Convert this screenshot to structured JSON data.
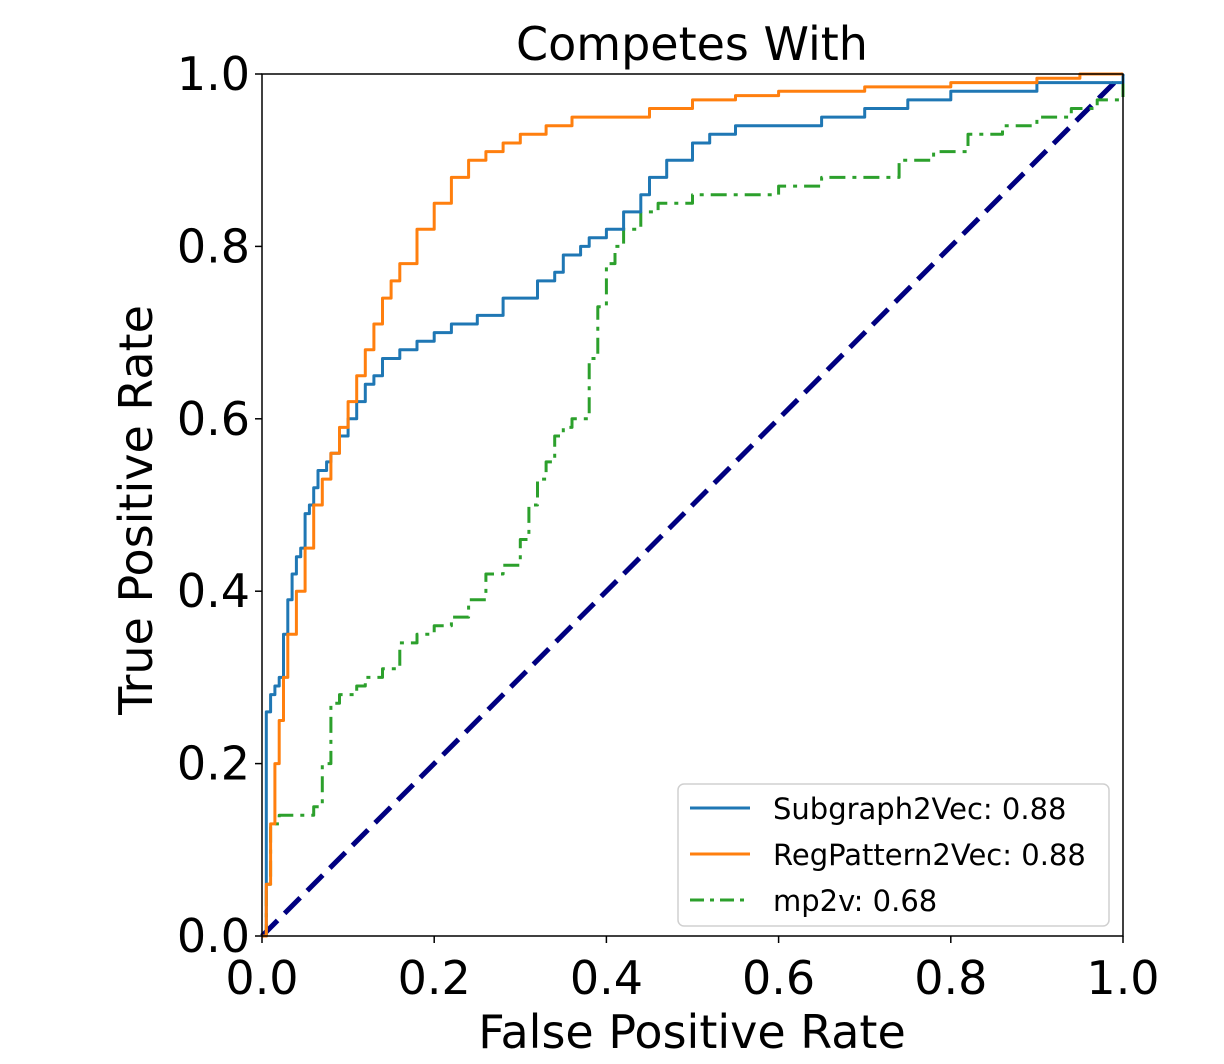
{
  "chart_data": {
    "type": "line",
    "title": "Competes With",
    "xlabel": "False Positive Rate",
    "ylabel": "True Positive Rate",
    "xlim": [
      0.0,
      1.0
    ],
    "ylim": [
      0.0,
      1.0
    ],
    "xticks": [
      "0.0",
      "0.2",
      "0.4",
      "0.6",
      "0.8",
      "1.0"
    ],
    "yticks": [
      "0.0",
      "0.2",
      "0.4",
      "0.6",
      "0.8",
      "1.0"
    ],
    "grid": false,
    "legend_position": "lower-right",
    "series": [
      {
        "name": "Subgraph2Vec: 0.88",
        "color": "#1f77b4",
        "style": "solid",
        "x": [
          0.0,
          0.005,
          0.005,
          0.01,
          0.01,
          0.015,
          0.02,
          0.025,
          0.03,
          0.03,
          0.035,
          0.04,
          0.04,
          0.045,
          0.05,
          0.055,
          0.06,
          0.065,
          0.07,
          0.075,
          0.08,
          0.09,
          0.1,
          0.11,
          0.12,
          0.13,
          0.14,
          0.16,
          0.18,
          0.2,
          0.22,
          0.25,
          0.28,
          0.3,
          0.32,
          0.34,
          0.35,
          0.37,
          0.38,
          0.4,
          0.42,
          0.44,
          0.45,
          0.47,
          0.5,
          0.52,
          0.55,
          0.6,
          0.65,
          0.7,
          0.75,
          0.8,
          0.85,
          0.9,
          0.95,
          1.0
        ],
        "y": [
          0.0,
          0.13,
          0.26,
          0.27,
          0.28,
          0.29,
          0.3,
          0.35,
          0.36,
          0.39,
          0.42,
          0.43,
          0.44,
          0.45,
          0.49,
          0.5,
          0.52,
          0.54,
          0.54,
          0.55,
          0.56,
          0.58,
          0.6,
          0.62,
          0.64,
          0.65,
          0.67,
          0.68,
          0.69,
          0.7,
          0.71,
          0.72,
          0.74,
          0.74,
          0.76,
          0.77,
          0.79,
          0.8,
          0.81,
          0.82,
          0.84,
          0.86,
          0.88,
          0.9,
          0.92,
          0.93,
          0.94,
          0.94,
          0.95,
          0.96,
          0.97,
          0.98,
          0.98,
          0.99,
          0.99,
          1.0
        ]
      },
      {
        "name": "RegPattern2Vec: 0.88",
        "color": "#ff7f0e",
        "style": "solid",
        "x": [
          0.0,
          0.005,
          0.01,
          0.015,
          0.02,
          0.025,
          0.03,
          0.04,
          0.05,
          0.06,
          0.07,
          0.08,
          0.09,
          0.1,
          0.11,
          0.12,
          0.13,
          0.14,
          0.15,
          0.16,
          0.18,
          0.2,
          0.22,
          0.24,
          0.26,
          0.28,
          0.3,
          0.33,
          0.36,
          0.4,
          0.45,
          0.5,
          0.55,
          0.6,
          0.7,
          0.8,
          0.9,
          0.95,
          1.0
        ],
        "y": [
          0.0,
          0.06,
          0.13,
          0.2,
          0.25,
          0.3,
          0.35,
          0.4,
          0.45,
          0.5,
          0.53,
          0.56,
          0.59,
          0.62,
          0.65,
          0.68,
          0.71,
          0.74,
          0.76,
          0.78,
          0.82,
          0.85,
          0.88,
          0.9,
          0.91,
          0.92,
          0.93,
          0.94,
          0.95,
          0.95,
          0.96,
          0.97,
          0.975,
          0.98,
          0.985,
          0.99,
          0.995,
          1.0,
          1.0
        ]
      },
      {
        "name": "mp2v: 0.68",
        "color": "#2ca02c",
        "style": "dashdot",
        "x": [
          0.0,
          0.005,
          0.01,
          0.02,
          0.04,
          0.06,
          0.07,
          0.08,
          0.09,
          0.11,
          0.12,
          0.14,
          0.16,
          0.18,
          0.2,
          0.22,
          0.24,
          0.26,
          0.28,
          0.3,
          0.31,
          0.32,
          0.33,
          0.34,
          0.35,
          0.36,
          0.38,
          0.39,
          0.4,
          0.41,
          0.42,
          0.44,
          0.46,
          0.48,
          0.5,
          0.55,
          0.6,
          0.65,
          0.7,
          0.74,
          0.78,
          0.82,
          0.86,
          0.9,
          0.94,
          0.97,
          1.0
        ],
        "y": [
          0.0,
          0.06,
          0.13,
          0.14,
          0.14,
          0.15,
          0.2,
          0.27,
          0.28,
          0.29,
          0.3,
          0.31,
          0.34,
          0.35,
          0.36,
          0.37,
          0.39,
          0.42,
          0.43,
          0.46,
          0.5,
          0.53,
          0.55,
          0.58,
          0.59,
          0.6,
          0.67,
          0.73,
          0.78,
          0.8,
          0.82,
          0.84,
          0.85,
          0.85,
          0.86,
          0.86,
          0.87,
          0.88,
          0.88,
          0.9,
          0.91,
          0.93,
          0.94,
          0.95,
          0.96,
          0.97,
          1.0
        ]
      }
    ],
    "reference_line": {
      "x": [
        0.0,
        1.0
      ],
      "y": [
        0.0,
        1.0
      ],
      "color": "#000080",
      "style": "dashed"
    }
  }
}
